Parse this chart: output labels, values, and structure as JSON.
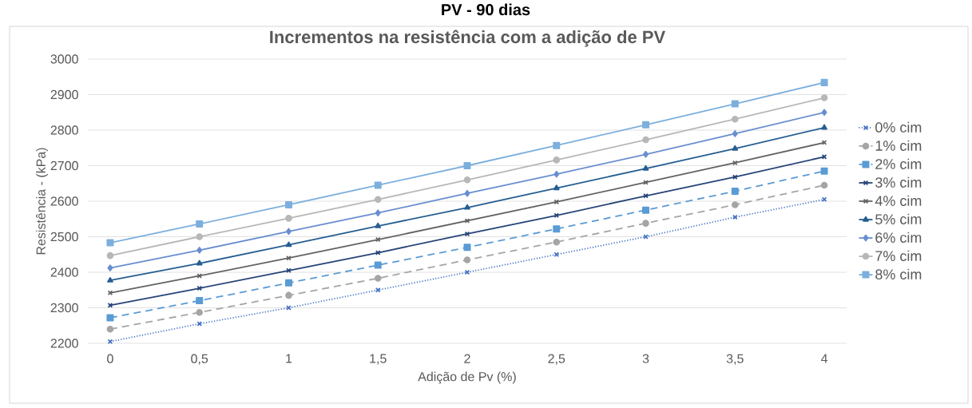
{
  "chart_data": {
    "type": "line",
    "title": "Incrementos na resistência com a adição de PV",
    "annotations": [
      "PV - 90 dias"
    ],
    "xlabel": "Adição de Pv (%)",
    "ylabel": "Resistência - (kPa)",
    "categories": [
      "0",
      "0,5",
      "1",
      "1,5",
      "2",
      "2,5",
      "3",
      "3,5",
      "4"
    ],
    "ylim": [
      2200,
      3000
    ],
    "yticks": [
      2200,
      2300,
      2400,
      2500,
      2600,
      2700,
      2800,
      2900,
      3000
    ],
    "grid": "y",
    "legend": "right",
    "series": [
      {
        "name": "0% cim",
        "color": "#4472c4",
        "marker": "cross",
        "line_style": "dotted",
        "values": [
          2205,
          2255,
          2300,
          2350,
          2400,
          2450,
          2500,
          2555,
          2605
        ]
      },
      {
        "name": "1% cim",
        "color": "#a5a5a5",
        "marker": "circle",
        "line_style": "dashed",
        "values": [
          2240,
          2287,
          2335,
          2383,
          2435,
          2485,
          2538,
          2590,
          2645
        ]
      },
      {
        "name": "2% cim",
        "color": "#5b9bd5",
        "marker": "square",
        "line_style": "dashed",
        "values": [
          2272,
          2320,
          2370,
          2420,
          2470,
          2522,
          2575,
          2628,
          2685
        ]
      },
      {
        "name": "3% cim",
        "color": "#264478",
        "marker": "cross",
        "line_style": "solid",
        "values": [
          2307,
          2355,
          2405,
          2455,
          2508,
          2560,
          2615,
          2668,
          2725
        ]
      },
      {
        "name": "4% cim",
        "color": "#636363",
        "marker": "cross",
        "line_style": "solid",
        "values": [
          2342,
          2390,
          2440,
          2492,
          2545,
          2598,
          2653,
          2708,
          2765
        ]
      },
      {
        "name": "5% cim",
        "color": "#255e91",
        "marker": "triangle",
        "line_style": "solid",
        "values": [
          2377,
          2425,
          2477,
          2530,
          2582,
          2637,
          2692,
          2748,
          2807
        ]
      },
      {
        "name": "6% cim",
        "color": "#698ed0",
        "marker": "diamond",
        "line_style": "solid",
        "values": [
          2412,
          2462,
          2515,
          2567,
          2622,
          2676,
          2732,
          2790,
          2850
        ]
      },
      {
        "name": "7% cim",
        "color": "#b7b7b7",
        "marker": "circle",
        "line_style": "solid",
        "values": [
          2447,
          2500,
          2552,
          2605,
          2660,
          2716,
          2773,
          2831,
          2891
        ]
      },
      {
        "name": "8% cim",
        "color": "#7cafdd",
        "marker": "square",
        "line_style": "solid",
        "values": [
          2483,
          2536,
          2590,
          2645,
          2700,
          2757,
          2815,
          2874,
          2934
        ]
      }
    ]
  }
}
